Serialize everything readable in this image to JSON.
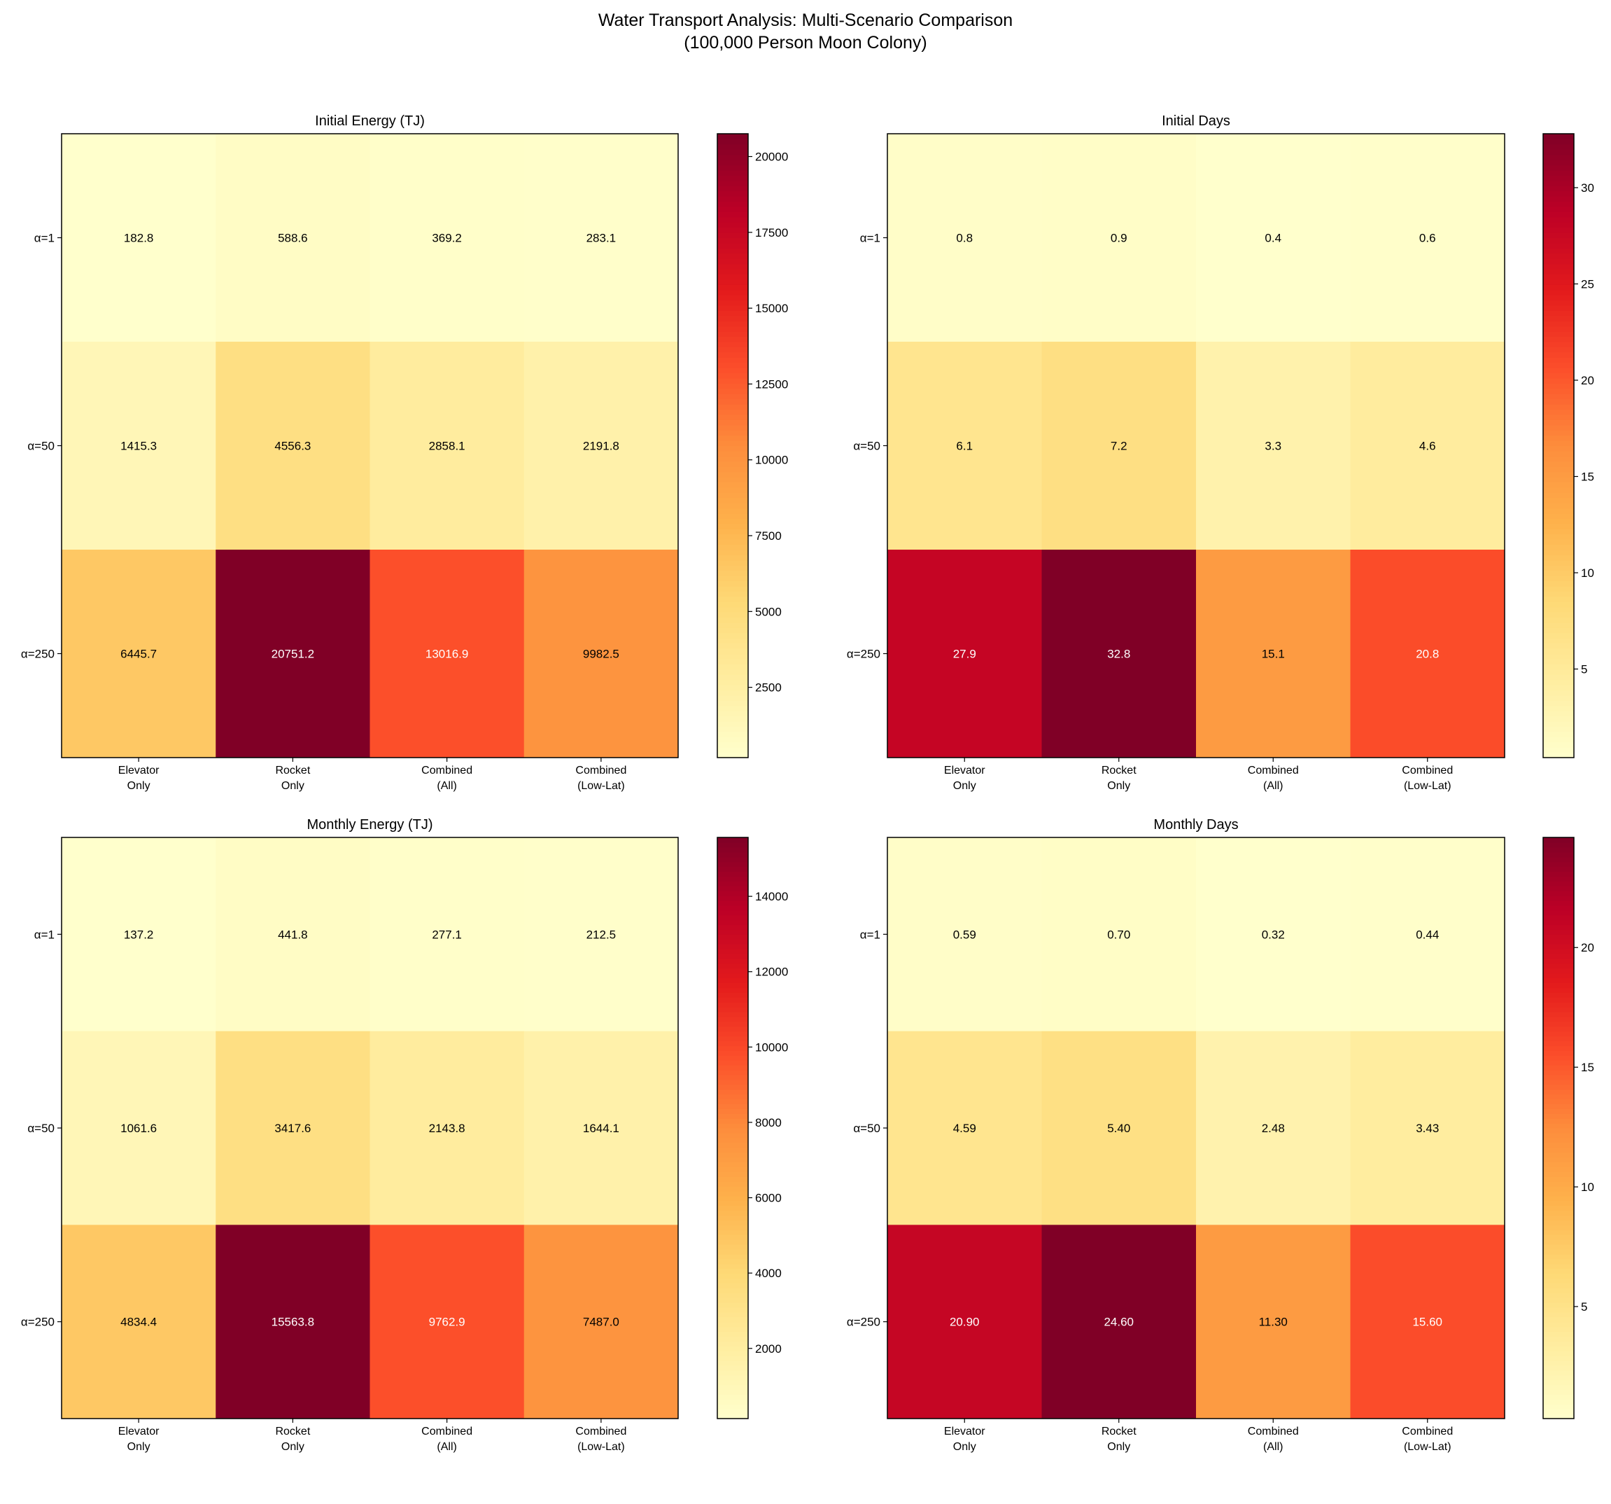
{
  "title_line1": "Water Transport Analysis: Multi-Scenario Comparison",
  "title_line2": "(100,000 Person Moon Colony)",
  "colormap": [
    "#ffffcc",
    "#ffeda0",
    "#fed976",
    "#feb24c",
    "#fd8d3c",
    "#fc4e2a",
    "#e31a1c",
    "#bd0026",
    "#800026"
  ],
  "chart_data": [
    {
      "type": "heatmap",
      "title": "Initial Energy (TJ)",
      "columns": [
        "Elevator\nOnly",
        "Rocket\nOnly",
        "Combined\n(All)",
        "Combined\n(Low-Lat)"
      ],
      "rows": [
        "α=1",
        "α=50",
        "α=250"
      ],
      "values": [
        [
          182.8,
          588.6,
          369.2,
          283.1
        ],
        [
          1415.3,
          4556.3,
          2858.1,
          2191.8
        ],
        [
          6445.7,
          20751.2,
          13016.9,
          9982.5
        ]
      ],
      "labels": [
        [
          "182.8",
          "588.6",
          "369.2",
          "283.1"
        ],
        [
          "1415.3",
          "4556.3",
          "2858.1",
          "2191.8"
        ],
        [
          "6445.7",
          "20751.2",
          "13016.9",
          "9982.5"
        ]
      ],
      "colorbar_ticks": [
        2500,
        5000,
        7500,
        10000,
        12500,
        15000,
        17500,
        20000
      ]
    },
    {
      "type": "heatmap",
      "title": "Initial Days",
      "columns": [
        "Elevator\nOnly",
        "Rocket\nOnly",
        "Combined\n(All)",
        "Combined\n(Low-Lat)"
      ],
      "rows": [
        "α=1",
        "α=50",
        "α=250"
      ],
      "values": [
        [
          0.8,
          0.9,
          0.4,
          0.6
        ],
        [
          6.1,
          7.2,
          3.3,
          4.6
        ],
        [
          27.9,
          32.8,
          15.1,
          20.8
        ]
      ],
      "labels": [
        [
          "0.8",
          "0.9",
          "0.4",
          "0.6"
        ],
        [
          "6.1",
          "7.2",
          "3.3",
          "4.6"
        ],
        [
          "27.9",
          "32.8",
          "15.1",
          "20.8"
        ]
      ],
      "colorbar_ticks": [
        5,
        10,
        15,
        20,
        25,
        30
      ]
    },
    {
      "type": "heatmap",
      "title": "Monthly Energy (TJ)",
      "columns": [
        "Elevator\nOnly",
        "Rocket\nOnly",
        "Combined\n(All)",
        "Combined\n(Low-Lat)"
      ],
      "rows": [
        "α=1",
        "α=50",
        "α=250"
      ],
      "values": [
        [
          137.2,
          441.8,
          277.1,
          212.5
        ],
        [
          1061.6,
          3417.6,
          2143.8,
          1644.1
        ],
        [
          4834.4,
          15563.8,
          9762.9,
          7487.0
        ]
      ],
      "labels": [
        [
          "137.2",
          "441.8",
          "277.1",
          "212.5"
        ],
        [
          "1061.6",
          "3417.6",
          "2143.8",
          "1644.1"
        ],
        [
          "4834.4",
          "15563.8",
          "9762.9",
          "7487.0"
        ]
      ],
      "colorbar_ticks": [
        2000,
        4000,
        6000,
        8000,
        10000,
        12000,
        14000
      ]
    },
    {
      "type": "heatmap",
      "title": "Monthly Days",
      "columns": [
        "Elevator\nOnly",
        "Rocket\nOnly",
        "Combined\n(All)",
        "Combined\n(Low-Lat)"
      ],
      "rows": [
        "α=1",
        "α=50",
        "α=250"
      ],
      "values": [
        [
          0.59,
          0.7,
          0.32,
          0.44
        ],
        [
          4.59,
          5.4,
          2.48,
          3.43
        ],
        [
          20.9,
          24.6,
          11.3,
          15.6
        ]
      ],
      "labels": [
        [
          "0.59",
          "0.70",
          "0.32",
          "0.44"
        ],
        [
          "4.59",
          "5.40",
          "2.48",
          "3.43"
        ],
        [
          "20.90",
          "24.60",
          "11.30",
          "15.60"
        ]
      ],
      "colorbar_ticks": [
        5,
        10,
        15,
        20
      ]
    }
  ]
}
